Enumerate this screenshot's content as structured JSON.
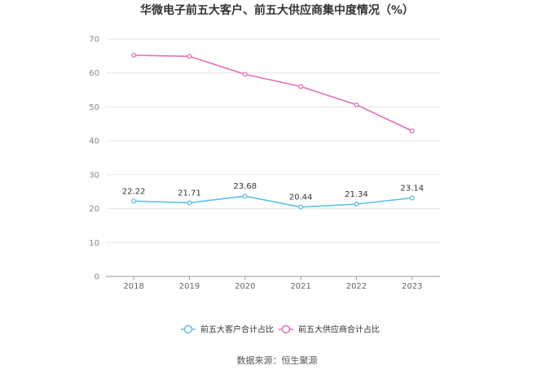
{
  "chart_data": {
    "type": "line",
    "title": "华微电子前五大客户、前五大供应商集中度情况（%）",
    "categories": [
      "2018",
      "2019",
      "2020",
      "2021",
      "2022",
      "2023"
    ],
    "series": [
      {
        "name": "前五大客户合计占比",
        "color": "#5bc0eb",
        "values": [
          22.22,
          21.71,
          23.68,
          20.44,
          21.34,
          23.14
        ],
        "labels": [
          "22.22",
          "21.71",
          "23.68",
          "20.44",
          "21.34",
          "23.14"
        ],
        "show_labels": true
      },
      {
        "name": "前五大供应商合计占比",
        "color": "#e070b8",
        "values": [
          65.2,
          64.9,
          59.6,
          56.0,
          50.6,
          42.9
        ],
        "show_labels": false
      }
    ],
    "ylim": [
      0,
      70
    ],
    "yticks": [
      0,
      10,
      20,
      30,
      40,
      50,
      60,
      70
    ],
    "grid": true,
    "legend_position": "bottom"
  },
  "source_text": "数据来源：恒生聚源"
}
